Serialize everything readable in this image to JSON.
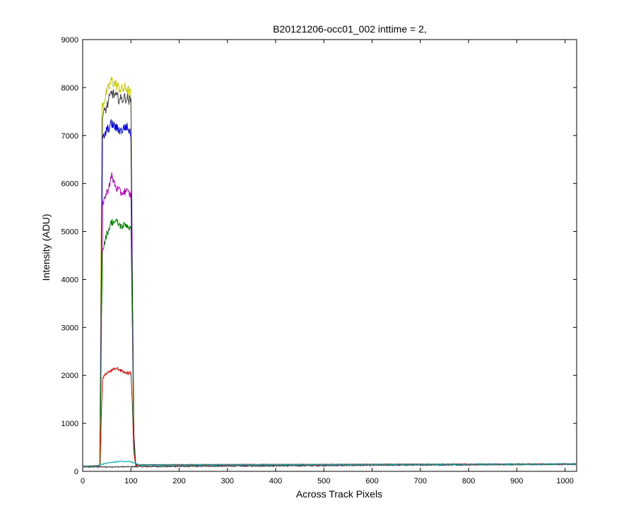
{
  "chart_data": {
    "type": "line",
    "title": "B20121206-occ01_002 inttime = 2,",
    "xlabel": "Across Track Pixels",
    "ylabel": "Intensity (ADU)",
    "xlim": [
      0,
      1024
    ],
    "ylim": [
      0,
      9000
    ],
    "x_ticks": [
      0,
      100,
      200,
      300,
      400,
      500,
      600,
      700,
      800,
      900,
      1000
    ],
    "y_ticks": [
      0,
      1000,
      2000,
      3000,
      4000,
      5000,
      6000,
      7000,
      8000,
      9000
    ],
    "grid": false,
    "legend": "none",
    "baseline": {
      "x": [
        0,
        1024
      ],
      "y": [
        90,
        150
      ]
    },
    "series": [
      {
        "color": "#c8c800",
        "x": [
          0,
          30,
          35,
          38,
          40,
          50,
          60,
          70,
          80,
          90,
          100,
          103,
          106,
          110,
          1024
        ],
        "y": [
          100,
          110,
          130,
          4500,
          7600,
          7900,
          8150,
          8050,
          7950,
          8000,
          7850,
          4000,
          800,
          130,
          150
        ]
      },
      {
        "color": "#404040",
        "x": [
          0,
          30,
          36,
          39,
          41,
          50,
          60,
          70,
          80,
          90,
          100,
          103,
          106,
          110,
          1024
        ],
        "y": [
          100,
          110,
          130,
          4500,
          7400,
          7600,
          7900,
          7800,
          7750,
          7800,
          7700,
          4000,
          800,
          130,
          150
        ]
      },
      {
        "color": "#0000e0",
        "x": [
          0,
          30,
          36,
          39,
          41,
          50,
          60,
          70,
          80,
          90,
          100,
          103,
          106,
          110,
          1024
        ],
        "y": [
          100,
          110,
          130,
          4200,
          6900,
          7100,
          7250,
          7150,
          7100,
          7200,
          7050,
          3800,
          700,
          130,
          150
        ]
      },
      {
        "color": "#c000c0",
        "x": [
          0,
          30,
          36,
          39,
          41,
          50,
          60,
          70,
          80,
          90,
          100,
          103,
          106,
          110,
          1024
        ],
        "y": [
          100,
          110,
          130,
          3500,
          5600,
          5800,
          6150,
          5900,
          5800,
          5850,
          5750,
          3200,
          600,
          130,
          150
        ]
      },
      {
        "color": "#008000",
        "x": [
          0,
          30,
          36,
          39,
          41,
          50,
          60,
          70,
          80,
          90,
          100,
          103,
          106,
          110,
          1024
        ],
        "y": [
          100,
          110,
          130,
          3200,
          4600,
          4950,
          5200,
          5200,
          5100,
          5150,
          5050,
          3000,
          600,
          130,
          150
        ]
      },
      {
        "color": "#e00000",
        "x": [
          0,
          30,
          36,
          39,
          41,
          50,
          60,
          70,
          80,
          90,
          100,
          103,
          106,
          110,
          1024
        ],
        "y": [
          100,
          110,
          130,
          1300,
          1950,
          2050,
          2100,
          2150,
          2100,
          2050,
          2050,
          1400,
          400,
          130,
          150
        ]
      },
      {
        "color": "#00b0b0",
        "x": [
          0,
          30,
          40,
          60,
          80,
          100,
          110,
          120,
          1024
        ],
        "y": [
          100,
          110,
          150,
          190,
          210,
          200,
          160,
          130,
          150
        ]
      }
    ]
  }
}
